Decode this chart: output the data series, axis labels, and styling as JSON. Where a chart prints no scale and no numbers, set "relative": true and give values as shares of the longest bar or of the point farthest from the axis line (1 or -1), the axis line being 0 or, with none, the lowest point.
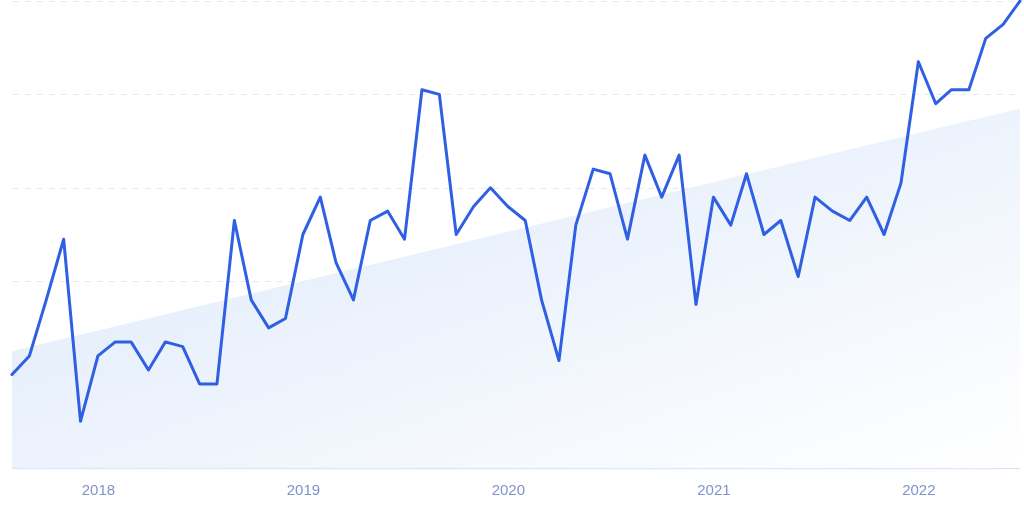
{
  "chart_data": {
    "type": "line",
    "relative": true,
    "tick_labels": "x",
    "grid": "y",
    "x": [
      "2017-08",
      "2017-09",
      "2017-10",
      "2017-11",
      "2017-12",
      "2018-01",
      "2018-02",
      "2018-03",
      "2018-04",
      "2018-05",
      "2018-06",
      "2018-07",
      "2018-08",
      "2018-09",
      "2018-10",
      "2018-11",
      "2018-12",
      "2019-01",
      "2019-02",
      "2019-03",
      "2019-04",
      "2019-05",
      "2019-06",
      "2019-07",
      "2019-08",
      "2019-09",
      "2019-10",
      "2019-11",
      "2019-12",
      "2020-01",
      "2020-02",
      "2020-03",
      "2020-04",
      "2020-05",
      "2020-06",
      "2020-07",
      "2020-08",
      "2020-09",
      "2020-10",
      "2020-11",
      "2020-12",
      "2021-01",
      "2021-02",
      "2021-03",
      "2021-04",
      "2021-05",
      "2021-06",
      "2021-07",
      "2021-08",
      "2021-09",
      "2021-10",
      "2021-11",
      "2021-12",
      "2022-01",
      "2022-02",
      "2022-03",
      "2022-04",
      "2022-05",
      "2022-06",
      "2022-07"
    ],
    "xlim": [
      "2017-08",
      "2022-07"
    ],
    "xticks": [
      "2018",
      "2019",
      "2020",
      "2021",
      "2022"
    ],
    "series": [
      {
        "type": "area",
        "color": "#dde9fa",
        "x": [
          "2017-08",
          "2022-07"
        ],
        "values": [
          0.25,
          0.77
        ]
      },
      {
        "color": "#2f5fe3",
        "values": [
          0.2,
          0.24,
          0.36,
          0.49,
          0.1,
          0.24,
          0.27,
          0.27,
          0.21,
          0.27,
          0.26,
          0.18,
          0.18,
          0.53,
          0.36,
          0.3,
          0.32,
          0.5,
          0.58,
          0.44,
          0.36,
          0.53,
          0.55,
          0.49,
          0.81,
          0.8,
          0.5,
          0.56,
          0.6,
          0.56,
          0.53,
          0.36,
          0.23,
          0.52,
          0.64,
          0.63,
          0.49,
          0.67,
          0.58,
          0.67,
          0.35,
          0.58,
          0.52,
          0.63,
          0.5,
          0.53,
          0.41,
          0.58,
          0.55,
          0.53,
          0.58,
          0.5,
          0.61,
          0.87,
          0.78,
          0.81,
          0.81,
          0.92,
          0.95,
          1.0
        ]
      }
    ]
  }
}
